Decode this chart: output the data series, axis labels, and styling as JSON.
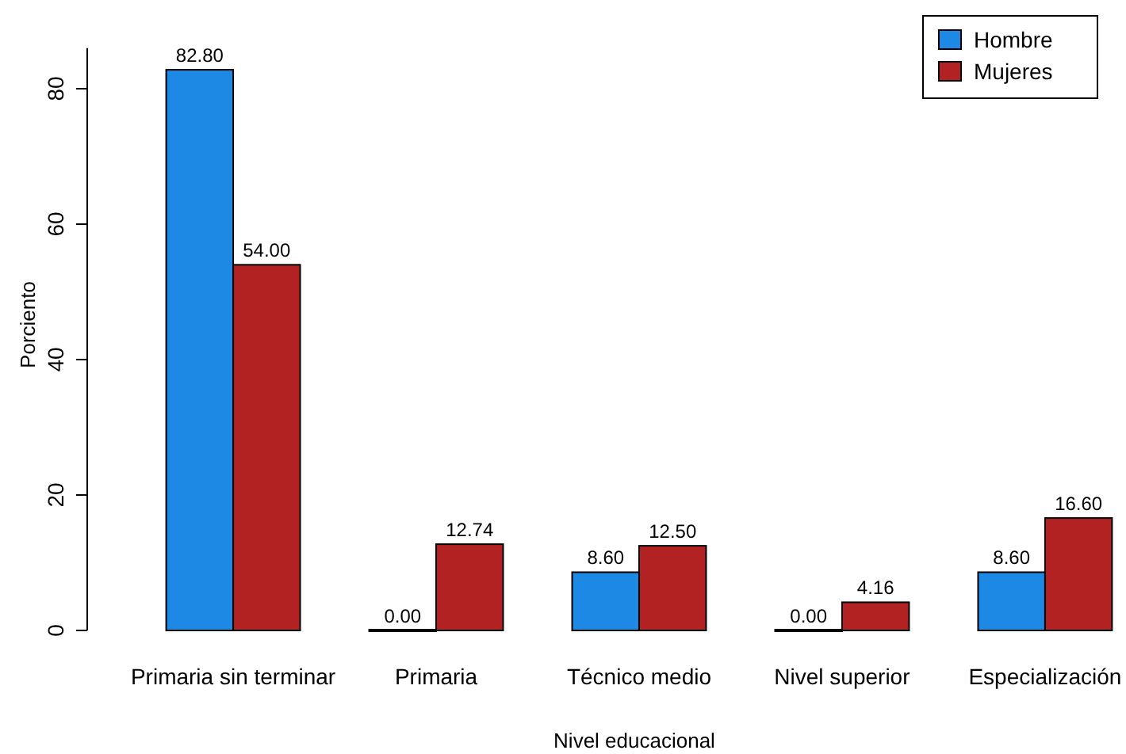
{
  "chart_data": {
    "type": "bar",
    "xlabel": "Nivel educacional",
    "ylabel": "Porciento",
    "categories": [
      "Primaria sin terminar",
      "Primaria",
      "Técnico medio",
      "Nivel superior",
      "Especialización"
    ],
    "series": [
      {
        "name": "Hombre",
        "color": "#1e88e5",
        "values": [
          82.8,
          0,
          8.6,
          0,
          8.6
        ],
        "value_labels": [
          "82.80",
          "0.00",
          "8.60",
          "0.00",
          "8.60"
        ]
      },
      {
        "name": "Mujeres",
        "color": "#b22222",
        "values": [
          54,
          12.74,
          12.5,
          4.16,
          16.6
        ],
        "value_labels": [
          "54.00",
          "12.74",
          "12.50",
          "4.16",
          "16.60"
        ]
      }
    ],
    "ylim": [
      0,
      86
    ],
    "yticks": [
      0,
      20,
      40,
      60,
      80
    ],
    "grid": false,
    "legend": "top right"
  }
}
